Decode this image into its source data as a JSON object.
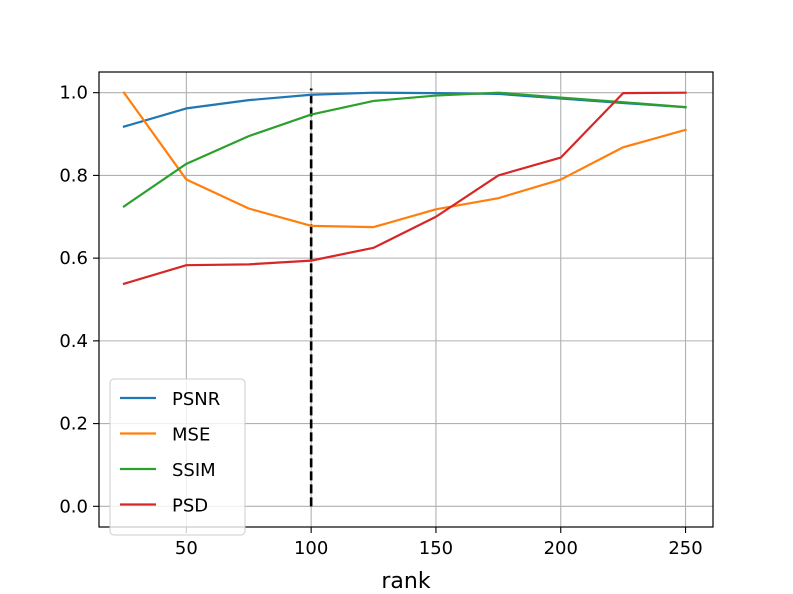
{
  "chart_data": {
    "type": "line",
    "title": "",
    "xlabel": "rank",
    "ylabel": "",
    "xlim": [
      15,
      261
    ],
    "ylim": [
      -0.05,
      1.05
    ],
    "xticks": [
      50,
      100,
      150,
      200,
      250
    ],
    "yticks": [
      0.0,
      0.2,
      0.4,
      0.6,
      0.8,
      1.0
    ],
    "xtick_labels": [
      "50",
      "100",
      "150",
      "200",
      "250"
    ],
    "ytick_labels": [
      "0.0",
      "0.2",
      "0.4",
      "0.6",
      "0.8",
      "1.0"
    ],
    "grid": true,
    "legend_position": "lower-left",
    "x": [
      25,
      50,
      75,
      100,
      125,
      150,
      175,
      200,
      225,
      250
    ],
    "series": [
      {
        "name": "PSNR",
        "color": "#1f77b4",
        "values": [
          0.918,
          0.962,
          0.982,
          0.995,
          1.0,
          0.999,
          0.997,
          0.986,
          0.975,
          0.965
        ]
      },
      {
        "name": "MSE",
        "color": "#ff7f0e",
        "values": [
          1.0,
          0.79,
          0.72,
          0.678,
          0.675,
          0.718,
          0.745,
          0.79,
          0.868,
          0.91
        ]
      },
      {
        "name": "SSIM",
        "color": "#2ca02c",
        "values": [
          0.725,
          0.828,
          0.895,
          0.947,
          0.98,
          0.993,
          1.0,
          0.988,
          0.977,
          0.965
        ]
      },
      {
        "name": "PSD",
        "color": "#d62728",
        "values": [
          0.538,
          0.583,
          0.585,
          0.594,
          0.625,
          0.7,
          0.8,
          0.843,
          0.999,
          1.0
        ]
      }
    ],
    "annotations": [
      {
        "type": "vline",
        "x": 100,
        "y_range": [
          0.0,
          1.01
        ],
        "style": "dashed",
        "color": "#000000"
      }
    ]
  }
}
